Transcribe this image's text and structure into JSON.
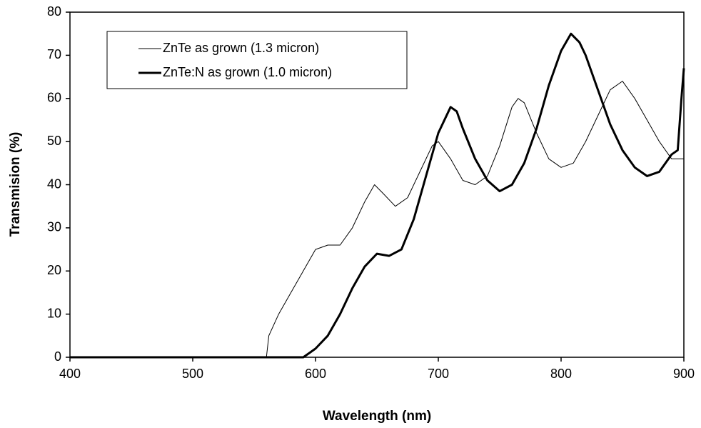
{
  "chart_data": {
    "type": "line",
    "x_label": "Wavelength (nm)",
    "y_label": "Transmision (%)",
    "xlim": [
      400,
      900
    ],
    "xticks": [
      400,
      500,
      600,
      700,
      800,
      900
    ],
    "ylim": [
      0,
      80
    ],
    "yticks": [
      0,
      10,
      20,
      30,
      40,
      50,
      60,
      70,
      80
    ],
    "grid": false,
    "legend": "upper-left",
    "series": [
      {
        "name": "ZnTe as grown (1.3 micron)",
        "color": "#000000",
        "width": 1,
        "x": [
          400,
          560,
          562,
          570,
          580,
          590,
          600,
          610,
          620,
          630,
          640,
          648,
          655,
          665,
          675,
          685,
          695,
          700,
          710,
          720,
          730,
          740,
          750,
          760,
          765,
          770,
          780,
          790,
          800,
          810,
          820,
          830,
          840,
          850,
          860,
          870,
          880,
          890,
          900
        ],
        "values": [
          0,
          0,
          5,
          10,
          15,
          20,
          25,
          26,
          26,
          30,
          36,
          40,
          38,
          35,
          37,
          43,
          49,
          50,
          46,
          41,
          40,
          42,
          49,
          58,
          60,
          59,
          52,
          46,
          44,
          45,
          50,
          56,
          62,
          64,
          60,
          55,
          50,
          46,
          46
        ]
      },
      {
        "name": "ZnTe:N as grown (1.0 micron)",
        "color": "#000000",
        "width": 3,
        "x": [
          400,
          590,
          595,
          600,
          610,
          620,
          630,
          640,
          650,
          660,
          670,
          680,
          690,
          700,
          710,
          715,
          720,
          730,
          740,
          750,
          760,
          770,
          780,
          790,
          800,
          808,
          815,
          820,
          830,
          840,
          850,
          860,
          870,
          880,
          890,
          895,
          898,
          900
        ],
        "values": [
          0,
          0,
          1,
          2,
          5,
          10,
          16,
          21,
          24,
          23.5,
          25,
          32,
          42,
          52,
          58,
          57,
          53,
          46,
          41,
          38.5,
          40,
          45,
          53,
          63,
          71,
          75,
          73,
          70,
          62,
          54,
          48,
          44,
          42,
          43,
          47,
          48,
          60,
          67
        ]
      }
    ]
  }
}
